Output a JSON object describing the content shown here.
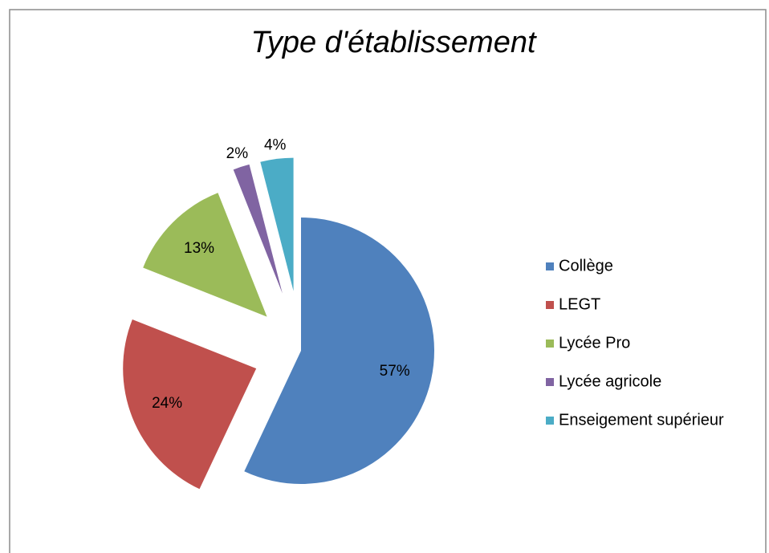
{
  "chart_data": {
    "type": "pie",
    "title": "Type d'établissement",
    "categories": [
      "Collège",
      "LEGT",
      "Lycée Pro",
      "Lycée agricole",
      "Enseigement supérieur"
    ],
    "values": [
      57,
      24,
      13,
      2,
      4
    ],
    "value_labels": [
      "57%",
      "24%",
      "13%",
      "2%",
      "4%"
    ],
    "colors": [
      "#4f81bd",
      "#c0504d",
      "#9bbb59",
      "#8064a2",
      "#4bacc6"
    ],
    "legend": "right"
  }
}
